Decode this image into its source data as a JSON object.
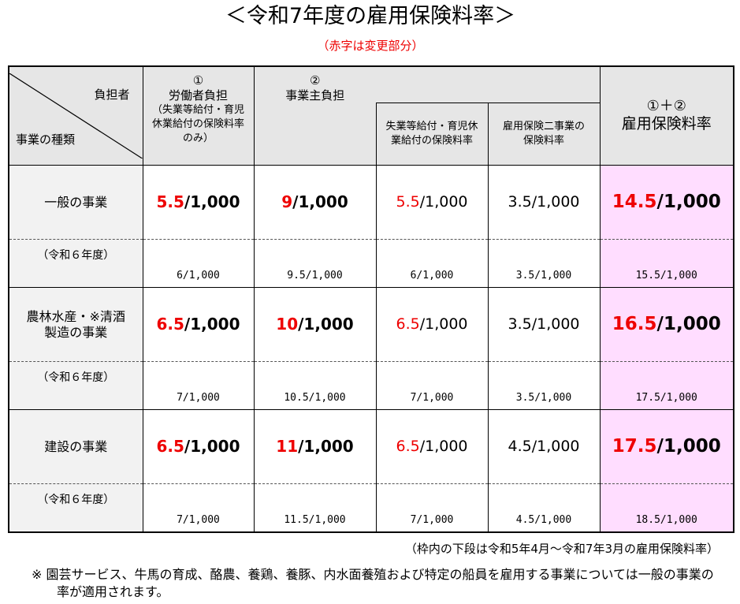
{
  "title": "＜令和7年度の雇用保険料率＞",
  "subtitle": "（赤字は変更部分）",
  "header": {
    "corner_top": "負担者",
    "corner_bottom": "事業の種類",
    "worker_num": "①",
    "worker_label": "労働者負担",
    "worker_note": "（失業等給付・育児休業給付の保険料率のみ）",
    "employer_num": "②",
    "employer_label": "事業主負担",
    "employer_sub1": "失業等給付・育児休業給付の保険料率",
    "employer_sub2": "雇用保険二事業の保険料率",
    "total_num": "①＋②",
    "total_label": "雇用保険料率"
  },
  "rows": [
    {
      "type": "一般の事業",
      "worker": {
        "red": "5.5",
        "rest": "/1,000"
      },
      "employer": {
        "red": "9",
        "rest": "/1,000"
      },
      "emp1": {
        "red": "5.5",
        "rest": "/1,000"
      },
      "emp2": "3.5/1,000",
      "total": {
        "red": "14.5",
        "rest": "/1,000"
      },
      "prev_label": "（令和６年度）",
      "prev": [
        "6/1,000",
        "9.5/1,000",
        "6/1,000",
        "3.5/1,000",
        "15.5/1,000"
      ]
    },
    {
      "type": "農林水産・※清酒製造の事業",
      "worker": {
        "red": "6.5",
        "rest": "/1,000"
      },
      "employer": {
        "red": "10",
        "rest": "/1,000"
      },
      "emp1": {
        "red": "6.5",
        "rest": "/1,000"
      },
      "emp2": "3.5/1,000",
      "total": {
        "red": "16.5",
        "rest": "/1,000"
      },
      "prev_label": "（令和６年度）",
      "prev": [
        "7/1,000",
        "10.5/1,000",
        "7/1,000",
        "3.5/1,000",
        "17.5/1,000"
      ]
    },
    {
      "type": "建設の事業",
      "worker": {
        "red": "6.5",
        "rest": "/1,000"
      },
      "employer": {
        "red": "11",
        "rest": "/1,000"
      },
      "emp1": {
        "red": "6.5",
        "rest": "/1,000"
      },
      "emp2": "4.5/1,000",
      "total": {
        "red": "17.5",
        "rest": "/1,000"
      },
      "prev_label": "（令和６年度）",
      "prev": [
        "7/1,000",
        "11.5/1,000",
        "7/1,000",
        "4.5/1,000",
        "18.5/1,000"
      ]
    }
  ],
  "note_period": "（枠内の下段は令和5年4月～令和7年3月の雇用保険料率）",
  "note_footnote": "※  園芸サービス、牛馬の育成、酪農、養鶏、養豚、内水面養殖および特定の船員を雇用する事業については一般の事業の率が適用されます。"
}
